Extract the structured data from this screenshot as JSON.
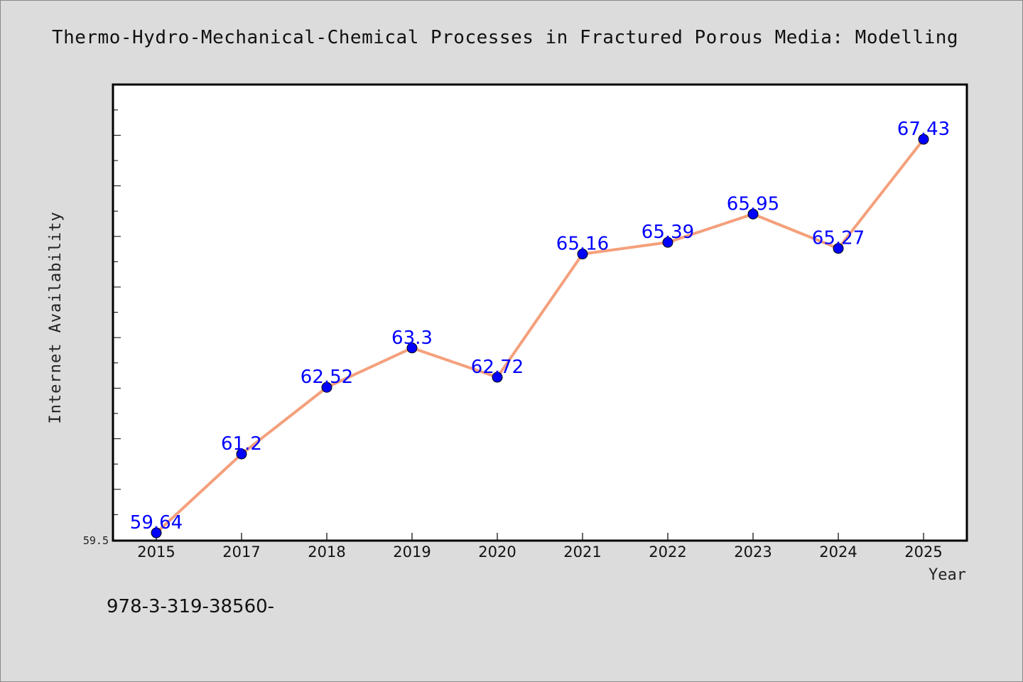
{
  "chart_data": {
    "type": "line",
    "title": "Thermo-Hydro-Mechanical-Chemical Processes in Fractured Porous Media: Modelling",
    "xlabel": "Year",
    "ylabel": "Internet Availability",
    "categories": [
      "2015",
      "2017",
      "2018",
      "2019",
      "2020",
      "2021",
      "2022",
      "2023",
      "2024",
      "2025"
    ],
    "series": [
      {
        "values": [
          59.64,
          61.2,
          62.52,
          63.3,
          62.72,
          65.16,
          65.39,
          65.95,
          65.27,
          67.43
        ],
        "labels": [
          "59.64",
          "61.2",
          "62.52",
          "63.3",
          "62.72",
          "65.16",
          "65.39",
          "65.95",
          "65.27",
          "67.43"
        ]
      }
    ],
    "ylim": [
      59.5,
      68.5
    ],
    "y_tick_labels": [
      "59.5"
    ],
    "grid": false,
    "line_color": "#f4a07c",
    "marker_color": "#0000ff",
    "label_color": "#0000ff"
  },
  "footer": {
    "text": "978-3-319-38560-"
  }
}
